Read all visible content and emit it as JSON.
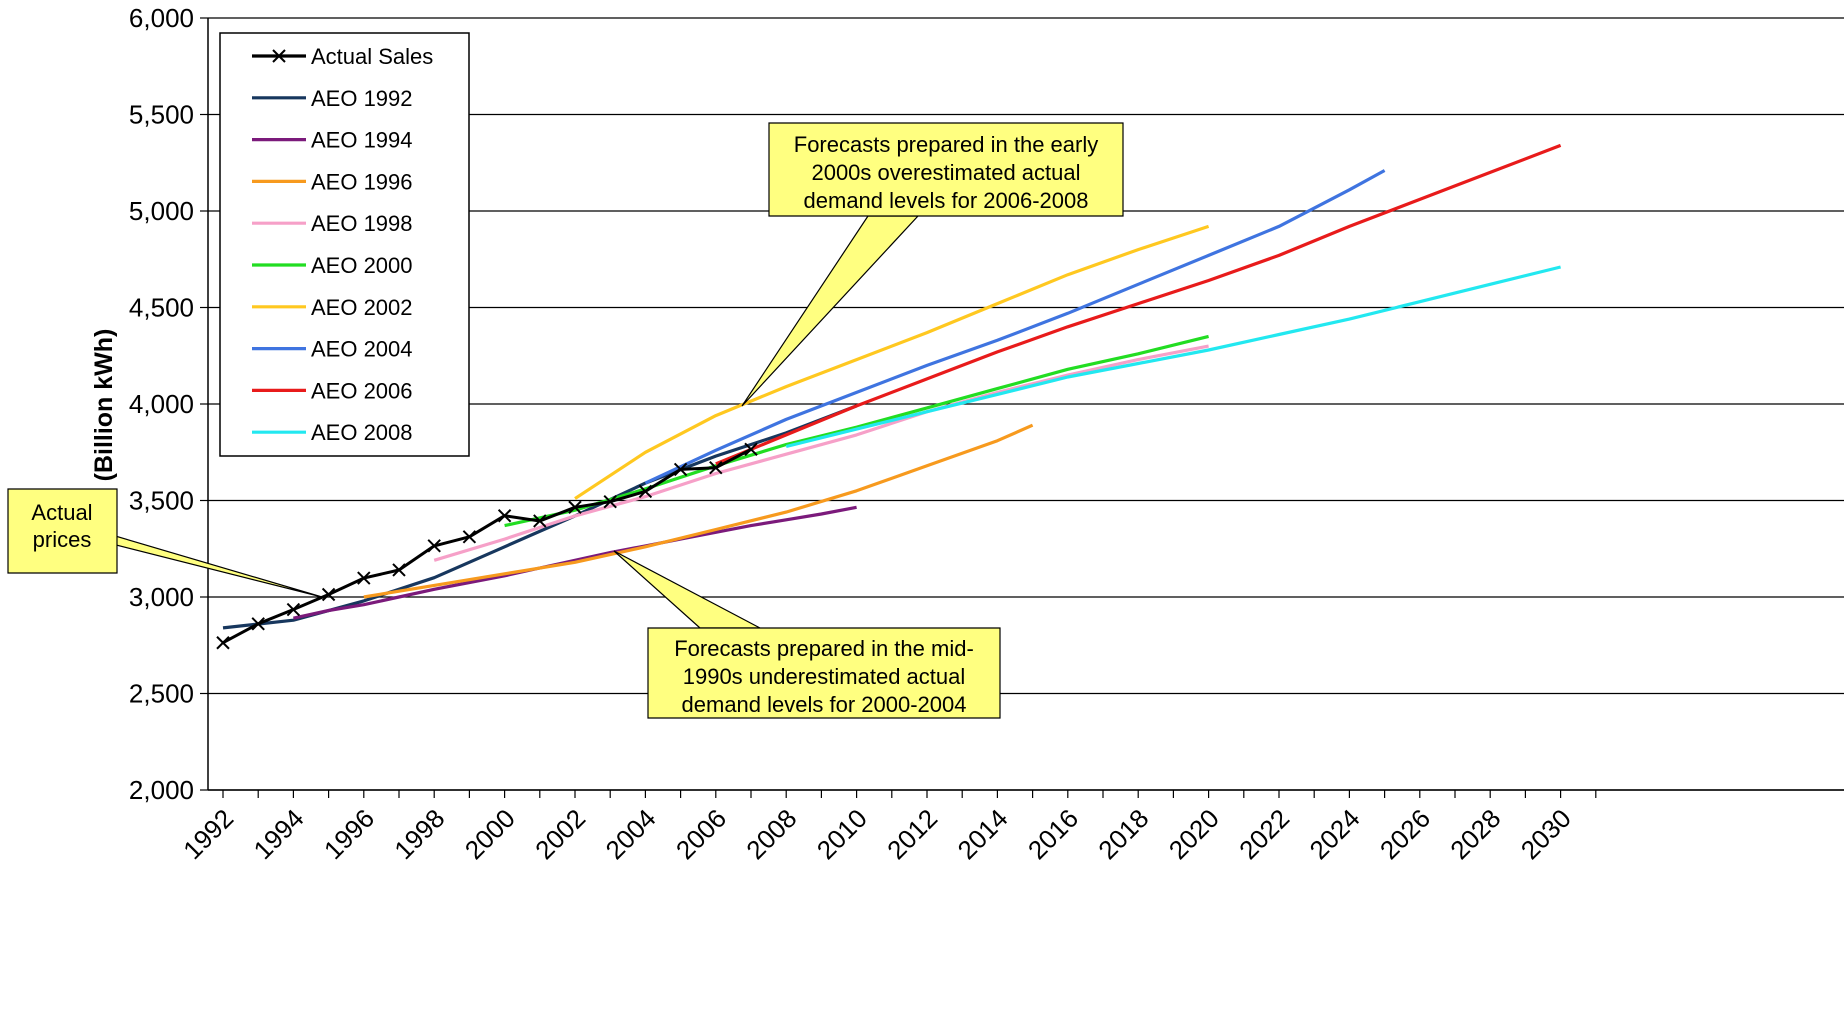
{
  "chart_data": {
    "type": "line",
    "title": "",
    "xlabel": "",
    "ylabel": "(Billion kWh)",
    "xlim": [
      1992,
      2030
    ],
    "ylim": [
      2000,
      6000
    ],
    "x_ticks": [
      "1992",
      "1994",
      "1996",
      "1998",
      "2000",
      "2002",
      "2004",
      "2006",
      "2008",
      "2010",
      "2012",
      "2014",
      "2016",
      "2018",
      "2020",
      "2022",
      "2024",
      "2026",
      "2028",
      "2030"
    ],
    "y_ticks": [
      "2,000",
      "2,500",
      "3,000",
      "3,500",
      "4,000",
      "4,500",
      "5,000",
      "5,500",
      "6,000"
    ],
    "grid": "horizontal",
    "legend_position": "top-left",
    "series": [
      {
        "name": "Actual Sales",
        "color": "#000000",
        "marker": "x",
        "x": [
          1992,
          1993,
          1994,
          1995,
          1996,
          1997,
          1998,
          1999,
          2000,
          2001,
          2002,
          2003,
          2004,
          2005,
          2006,
          2007
        ],
        "y": [
          2763,
          2861,
          2935,
          3013,
          3098,
          3140,
          3265,
          3312,
          3421,
          3394,
          3465,
          3494,
          3547,
          3661,
          3670,
          3765
        ]
      },
      {
        "name": "AEO 1992",
        "color": "#17375e",
        "x": [
          1992,
          1994,
          1996,
          1998,
          2000,
          2002,
          2004,
          2006,
          2008,
          2010
        ],
        "y": [
          2840,
          2880,
          2980,
          3100,
          3260,
          3420,
          3590,
          3730,
          3850,
          3990
        ]
      },
      {
        "name": "AEO 1994",
        "color": "#7b1a7b",
        "x": [
          1994,
          1995,
          1996,
          1997,
          1998,
          1999,
          2000,
          2001,
          2002,
          2003,
          2004,
          2005,
          2006,
          2007,
          2008,
          2009,
          2010
        ],
        "y": [
          2890,
          2930,
          2960,
          3000,
          3040,
          3075,
          3110,
          3150,
          3190,
          3230,
          3265,
          3300,
          3335,
          3370,
          3400,
          3430,
          3465
        ]
      },
      {
        "name": "AEO 1996",
        "color": "#f79a1e",
        "x": [
          1996,
          1998,
          2000,
          2002,
          2004,
          2006,
          2008,
          2010,
          2012,
          2014,
          2015
        ],
        "y": [
          3000,
          3060,
          3120,
          3180,
          3260,
          3350,
          3440,
          3550,
          3680,
          3810,
          3890
        ]
      },
      {
        "name": "AEO 1998",
        "color": "#f6a0c8",
        "x": [
          1998,
          2000,
          2002,
          2004,
          2006,
          2008,
          2010,
          2012,
          2014,
          2016,
          2018,
          2020
        ],
        "y": [
          3190,
          3300,
          3420,
          3520,
          3640,
          3740,
          3840,
          3960,
          4060,
          4150,
          4230,
          4300
        ]
      },
      {
        "name": "AEO 2000",
        "color": "#22dd22",
        "x": [
          2000,
          2002,
          2004,
          2006,
          2008,
          2010,
          2012,
          2014,
          2016,
          2018,
          2020
        ],
        "y": [
          3370,
          3450,
          3560,
          3680,
          3790,
          3880,
          3980,
          4080,
          4180,
          4260,
          4350
        ]
      },
      {
        "name": "AEO 2002",
        "color": "#ffc820",
        "x": [
          2002,
          2004,
          2006,
          2008,
          2010,
          2012,
          2014,
          2016,
          2018,
          2020
        ],
        "y": [
          3510,
          3750,
          3940,
          4090,
          4230,
          4370,
          4520,
          4670,
          4800,
          4920
        ]
      },
      {
        "name": "AEO 2004",
        "color": "#3f74e0",
        "x": [
          2004,
          2006,
          2008,
          2010,
          2012,
          2014,
          2016,
          2018,
          2020,
          2022,
          2024,
          2025
        ],
        "y": [
          3590,
          3760,
          3920,
          4060,
          4200,
          4330,
          4470,
          4620,
          4770,
          4920,
          5110,
          5210
        ]
      },
      {
        "name": "AEO 2006",
        "color": "#e81b1b",
        "x": [
          2006,
          2008,
          2010,
          2012,
          2014,
          2016,
          2018,
          2020,
          2022,
          2024,
          2026,
          2028,
          2030
        ],
        "y": [
          3690,
          3840,
          3990,
          4130,
          4270,
          4400,
          4520,
          4640,
          4770,
          4920,
          5060,
          5200,
          5340
        ]
      },
      {
        "name": "AEO 2008",
        "color": "#22e8f0",
        "x": [
          2008,
          2010,
          2012,
          2014,
          2016,
          2018,
          2020,
          2022,
          2024,
          2026,
          2028,
          2030
        ],
        "y": [
          3780,
          3870,
          3960,
          4050,
          4140,
          4210,
          4280,
          4360,
          4440,
          4530,
          4620,
          4710
        ]
      }
    ],
    "annotations": [
      "Actual prices",
      "Forecasts prepared in the early 2000s overestimated actual demand levels for 2006-2008",
      "Forecasts prepared in the mid-1990s underestimated actual demand levels for 2000-2004"
    ]
  },
  "callouts": {
    "actual": [
      "Actual",
      "prices"
    ],
    "early": [
      "Forecasts prepared in the early",
      "2000s overestimated actual",
      "demand levels for 2006-2008"
    ],
    "mid": [
      "Forecasts prepared in the mid-",
      "1990s underestimated actual",
      "demand levels for 2000-2004"
    ]
  }
}
